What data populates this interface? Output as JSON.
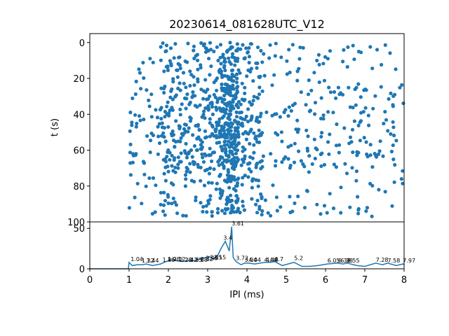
{
  "chart_data": [
    {
      "type": "scatter",
      "title": "20230614_081628UTC_V12",
      "xlabel": "",
      "ylabel": "t (s)",
      "xlim": [
        0,
        8
      ],
      "ylim": [
        100,
        -5
      ],
      "y_inverted": true,
      "yticks": [
        "0",
        "20",
        "40",
        "60",
        "80",
        "100"
      ],
      "color": "#1f77b4",
      "x_range_of_points": [
        1.0,
        8.0
      ],
      "y_range_of_points": [
        0,
        97
      ],
      "dense_region_x": [
        3.3,
        3.8
      ],
      "note_points_count_approx": 1100
    },
    {
      "type": "line",
      "title": "",
      "xlabel": "IPI (ms)",
      "ylabel": "",
      "xlim": [
        0,
        8
      ],
      "ylim": [
        0,
        58
      ],
      "xticks": [
        "0",
        "1",
        "2",
        "3",
        "4",
        "5",
        "6",
        "7",
        "8"
      ],
      "yticks": [
        "0",
        "50"
      ],
      "color": "#1f77b4",
      "x": [
        0.0,
        0.98,
        1.0,
        1.04,
        1.08,
        1.2,
        1.32,
        1.44,
        1.6,
        1.8,
        1.85,
        1.95,
        2.05,
        2.2,
        2.35,
        2.5,
        2.65,
        2.8,
        2.95,
        3.05,
        3.15,
        3.25,
        3.35,
        3.45,
        3.55,
        3.61,
        3.65,
        3.72,
        3.85,
        3.94,
        4.04,
        4.2,
        4.46,
        4.6,
        4.7,
        4.9,
        5.2,
        5.4,
        5.6,
        5.8,
        6.05,
        6.3,
        6.45,
        6.55,
        6.8,
        7.0,
        7.28,
        7.45,
        7.58,
        7.8,
        7.97,
        8.0
      ],
      "y": [
        0,
        0,
        8,
        6,
        4,
        5,
        5,
        6,
        4,
        6,
        7,
        9,
        11,
        10,
        9,
        10,
        10,
        12,
        14,
        15,
        12,
        16,
        26,
        34,
        22,
        52,
        14,
        9,
        5,
        7,
        7,
        6,
        8,
        8,
        9,
        4,
        8,
        3,
        3,
        4,
        6,
        7,
        6,
        7,
        4,
        3,
        7,
        5,
        7,
        4,
        6,
        5
      ],
      "peak_labels": [
        {
          "x": 1.04,
          "y": 8,
          "text": "1.04"
        },
        {
          "x": 1.32,
          "y": 6,
          "text": "1.32"
        },
        {
          "x": 1.44,
          "y": 6,
          "text": "1.44"
        },
        {
          "x": 1.85,
          "y": 7,
          "text": "1.85"
        },
        {
          "x": 1.98,
          "y": 8,
          "text": "1.98"
        },
        {
          "x": 2.12,
          "y": 8,
          "text": "2.12"
        },
        {
          "x": 2.28,
          "y": 7,
          "text": "2.28"
        },
        {
          "x": 2.42,
          "y": 7,
          "text": "2.42"
        },
        {
          "x": 2.55,
          "y": 7,
          "text": "2.55"
        },
        {
          "x": 2.68,
          "y": 7,
          "text": "2.68"
        },
        {
          "x": 2.82,
          "y": 8,
          "text": "2.82"
        },
        {
          "x": 2.95,
          "y": 9,
          "text": "2.95"
        },
        {
          "x": 3.05,
          "y": 10,
          "text": "3.05"
        },
        {
          "x": 3.15,
          "y": 10,
          "text": "3.15"
        },
        {
          "x": 3.4,
          "y": 34,
          "text": "3.4"
        },
        {
          "x": 3.61,
          "y": 52,
          "text": "3.61"
        },
        {
          "x": 3.72,
          "y": 9,
          "text": "3.72"
        },
        {
          "x": 3.94,
          "y": 7,
          "text": "3.94"
        },
        {
          "x": 4.04,
          "y": 7,
          "text": "4.04"
        },
        {
          "x": 4.44,
          "y": 7,
          "text": "4.44"
        },
        {
          "x": 4.48,
          "y": 7,
          "text": "4.48"
        },
        {
          "x": 4.7,
          "y": 8,
          "text": "4.7"
        },
        {
          "x": 5.2,
          "y": 9,
          "text": "5.2"
        },
        {
          "x": 6.05,
          "y": 6,
          "text": "6.05"
        },
        {
          "x": 6.32,
          "y": 6,
          "text": "6.32"
        },
        {
          "x": 6.38,
          "y": 6,
          "text": "6.38"
        },
        {
          "x": 6.55,
          "y": 6,
          "text": "6.55"
        },
        {
          "x": 7.28,
          "y": 7,
          "text": "7.28"
        },
        {
          "x": 7.58,
          "y": 6,
          "text": "7.58"
        },
        {
          "x": 7.97,
          "y": 6,
          "text": "7.97"
        }
      ]
    }
  ]
}
